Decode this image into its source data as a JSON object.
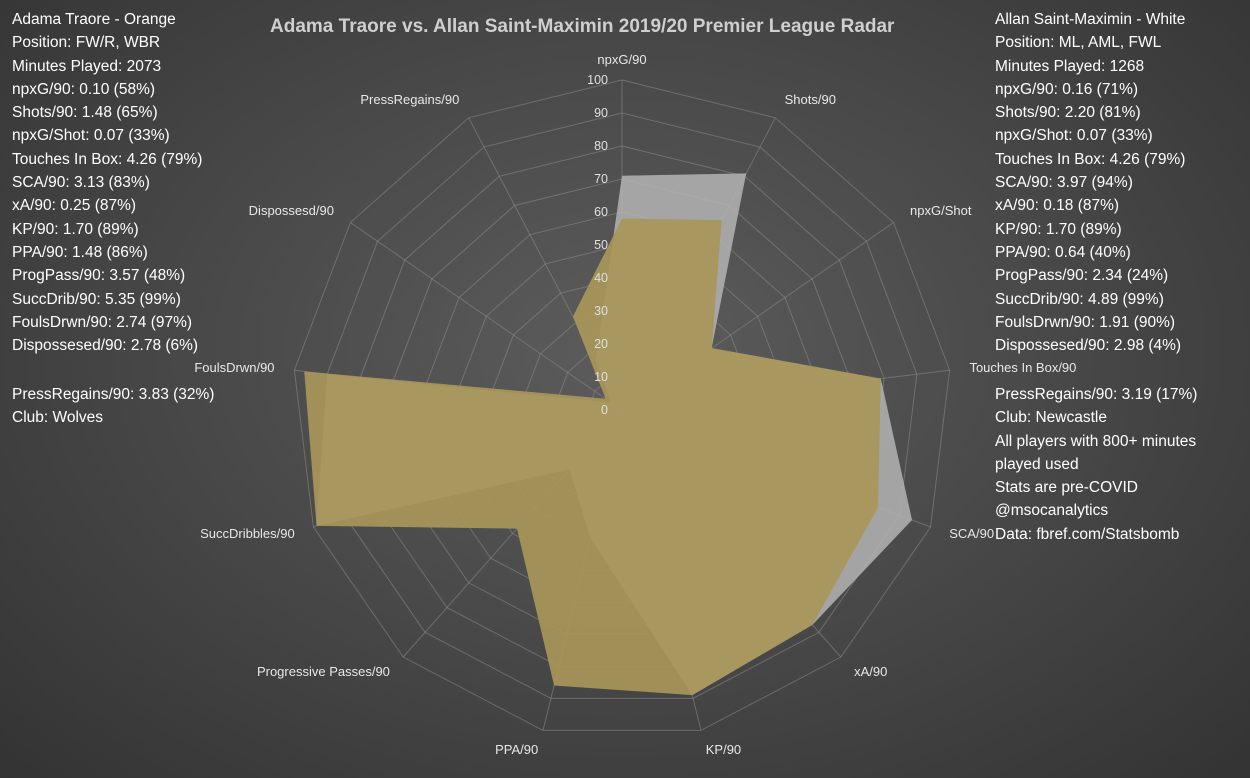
{
  "title": "Adama Traore vs. Allan Saint-Maximin 2019/20 Premier League Radar",
  "left_info": [
    "Adama Traore - Orange",
    "Position: FW/R, WBR",
    "Minutes Played: 2073",
    "npxG/90: 0.10 (58%)",
    "Shots/90: 1.48 (65%)",
    "npxG/Shot: 0.07 (33%)",
    "Touches In Box: 4.26 (79%)",
    "SCA/90: 3.13 (83%)",
    "xA/90: 0.25 (87%)",
    "KP/90: 1.70 (89%)",
    "PPA/90: 1.48 (86%)",
    "ProgPass/90: 3.57 (48%)",
    "SuccDrib/90: 5.35 (99%)",
    "FoulsDrwn/90: 2.74 (97%)",
    "Dispossesed/90: 2.78 (6%)"
  ],
  "left_extra": [
    "PressRegains/90: 3.83 (32%)",
    "Club: Wolves"
  ],
  "right_info": [
    "Allan Saint-Maximin - White",
    "Position: ML, AML, FWL",
    "Minutes Played: 1268",
    "npxG/90: 0.16 (71%)",
    "Shots/90: 2.20 (81%)",
    "npxG/Shot: 0.07 (33%)",
    "Touches In Box: 4.26 (79%)",
    "SCA/90: 3.97 (94%)",
    "xA/90: 0.18 (87%)",
    "KP/90: 1.70 (89%)",
    "PPA/90: 0.64 (40%)",
    "ProgPass/90: 2.34 (24%)",
    "SuccDrib/90: 4.89 (99%)",
    "FoulsDrwn/90: 1.91 (90%)",
    "Dispossesed/90: 2.98 (4%)"
  ],
  "right_extra": [
    "PressRegains/90: 3.19 (17%)",
    "Club: Newcastle",
    "All players with 800+ minutes",
    "played used",
    "Stats are pre-COVID",
    "@msocanalytics",
    "Data: fbref.com/Statsbomb"
  ],
  "colors": {
    "traore_fill": "#a89658",
    "saint_maximin_fill": "#b4b4b4",
    "grid": "#8c8c8c",
    "title": "#cfcfcf"
  },
  "chart_data": {
    "type": "radar",
    "categories": [
      "npxG/90",
      "Shots/90",
      "npxG/Shot",
      "Touches In Box/90",
      "SCA/90",
      "xA/90",
      "KP/90",
      "PPA/90",
      "Progressive Passes/90",
      "SuccDribbles/90",
      "FoulsDrwn/90",
      "Dispossesd/90",
      "PressRegains/90"
    ],
    "r_ticks": [
      0,
      10,
      20,
      30,
      40,
      50,
      60,
      70,
      80,
      90,
      100
    ],
    "r_range": [
      0,
      100
    ],
    "series": [
      {
        "values": [
          71,
          81,
          33,
          79,
          94,
          87,
          89,
          40,
          24,
          99,
          90,
          4,
          17
        ]
      },
      {
        "values": [
          58,
          65,
          33,
          79,
          83,
          87,
          89,
          86,
          48,
          99,
          97,
          6,
          32
        ]
      }
    ]
  }
}
